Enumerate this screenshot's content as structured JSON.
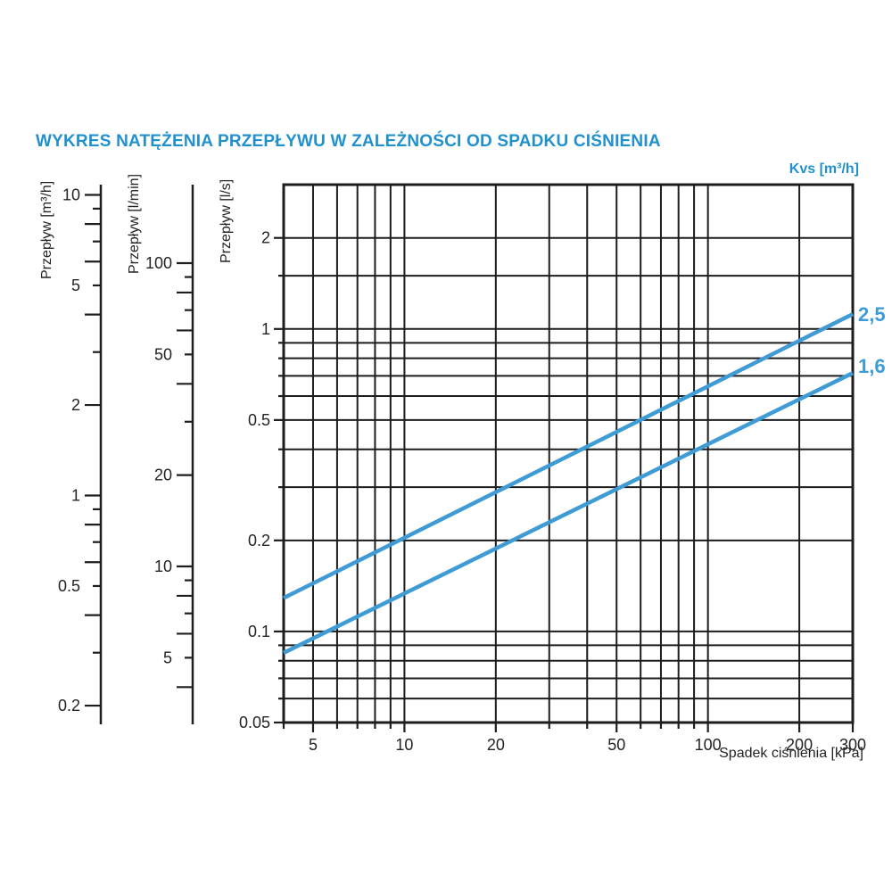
{
  "title": "WYKRES NATĘŻENIA PRZEPŁYWU W ZALEŻNOŚCI OD SPADKU CIŚNIENIA",
  "kvs_header": "Kvs [m³/h]",
  "colors": {
    "title_blue": "#2191CD",
    "line_blue": "#3E9BD6",
    "grid": "#1D1D1D",
    "text": "#232323"
  },
  "chart_data": {
    "type": "line",
    "title": "WYKRES NATĘŻENIA PRZEPŁYWU W ZALEŻNOŚCI OD SPADKU CIŚNIENIA",
    "kvs_unit_header": "Kvs [m³/h]",
    "x_axis": {
      "label": "Spadek ciśnienia [kPa]",
      "scale": "log",
      "min": 4,
      "max": 300,
      "gridlines": [
        5,
        6,
        7,
        8,
        9,
        10,
        20,
        30,
        40,
        50,
        60,
        70,
        80,
        90,
        100,
        200
      ],
      "labeled_ticks": [
        5,
        10,
        20,
        50,
        100,
        200,
        300
      ]
    },
    "y_axis": {
      "label": "Przepływ [l/s]",
      "scale": "log",
      "min": 0.05,
      "max": 3,
      "gridlines": [
        2,
        1.5,
        1,
        0.9,
        0.8,
        0.7,
        0.6,
        0.5,
        0.4,
        0.3,
        0.2,
        0.1,
        0.09,
        0.08,
        0.07,
        0.06
      ],
      "labeled_ticks": [
        2,
        1,
        0.5,
        0.2,
        0.1,
        0.05
      ]
    },
    "secondary_y_axes": [
      {
        "label": "Przepływ [m³/h]",
        "scale": "log",
        "ticks": [
          10,
          9,
          8,
          7,
          6,
          5,
          4,
          3,
          2,
          1,
          0.9,
          0.8,
          0.7,
          0.6,
          0.5,
          0.4,
          0.3,
          0.2
        ],
        "labeled_ticks": [
          10,
          5,
          2,
          1,
          0.5,
          0.2
        ]
      },
      {
        "label": "Przepływ [l/min]",
        "scale": "log",
        "ticks": [
          100,
          90,
          80,
          70,
          60,
          50,
          40,
          30,
          20,
          10,
          9,
          8,
          7,
          6,
          5,
          4
        ],
        "labeled_ticks": [
          100,
          50,
          20,
          10,
          5
        ]
      }
    ],
    "series": [
      {
        "name": "2,5",
        "kvs_m3h": 2.5,
        "points": [
          {
            "x_kpa": 4,
            "y_ls": 0.129
          },
          {
            "x_kpa": 300,
            "y_ls": 1.12
          }
        ]
      },
      {
        "name": "1,6",
        "kvs_m3h": 1.6,
        "points": [
          {
            "x_kpa": 4,
            "y_ls": 0.085
          },
          {
            "x_kpa": 300,
            "y_ls": 0.715
          }
        ]
      }
    ],
    "legend_position": "right-of-line-ends",
    "grid": true
  }
}
